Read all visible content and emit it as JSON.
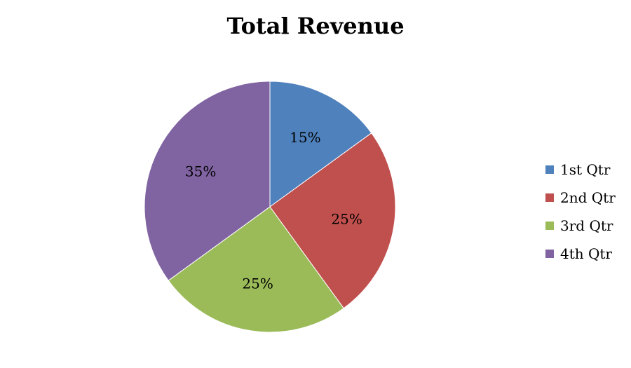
{
  "chart_data": {
    "type": "pie",
    "title": "Total Revenue",
    "categories": [
      "1st Qtr",
      "2nd Qtr",
      "3rd Qtr",
      "4th Qtr"
    ],
    "values": [
      15,
      25,
      25,
      35
    ],
    "data_labels": [
      "15%",
      "25%",
      "25%",
      "35%"
    ],
    "colors": [
      "#4F81BD",
      "#C0504D",
      "#9BBB59",
      "#8064A2"
    ],
    "legend_position": "right",
    "start_angle": "top",
    "direction": "clockwise"
  }
}
